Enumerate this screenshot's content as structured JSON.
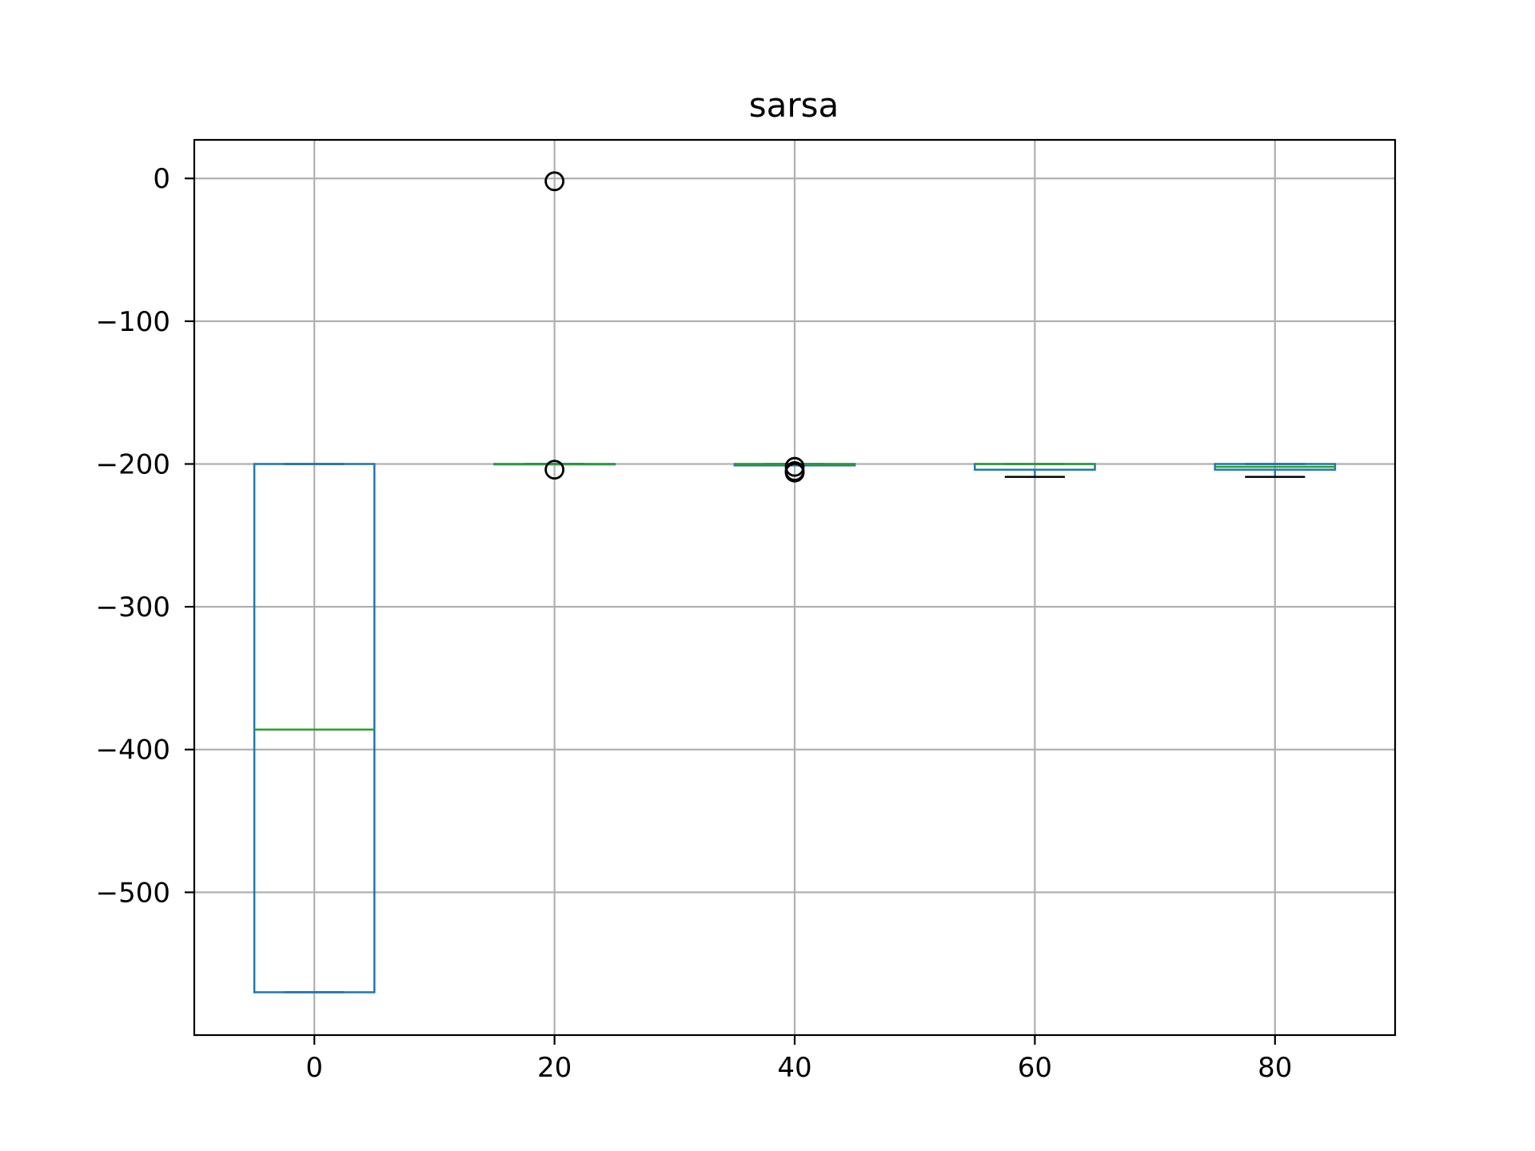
{
  "chart_data": {
    "type": "box",
    "title": "sarsa",
    "xlabel": "",
    "ylabel": "",
    "positions": [
      0,
      20,
      40,
      60,
      80
    ],
    "xlim": [
      -10,
      90
    ],
    "ylim": [
      -600,
      27
    ],
    "xticks": [
      "0",
      "20",
      "40",
      "60",
      "80"
    ],
    "yticks": [
      0,
      -100,
      -200,
      -300,
      -400,
      -500
    ],
    "yticklabels": [
      "0",
      "−100",
      "−200",
      "−300",
      "−400",
      "−500"
    ],
    "grid": true,
    "box_width": 10,
    "boxes": [
      {
        "position": 0,
        "whisker_low": -570,
        "q1": -570,
        "median": -386,
        "q3": -200,
        "whisker_high": -200,
        "fliers": []
      },
      {
        "position": 20,
        "whisker_low": -200,
        "q1": -200,
        "median": -200,
        "q3": -200,
        "whisker_high": -200,
        "fliers": [
          -2,
          -204
        ]
      },
      {
        "position": 40,
        "whisker_low": -201,
        "q1": -201,
        "median": -200,
        "q3": -200,
        "whisker_high": -200,
        "fliers": [
          -202,
          -205,
          -206
        ]
      },
      {
        "position": 60,
        "whisker_low": -209,
        "q1": -204,
        "median": -200,
        "q3": -200,
        "whisker_high": -200,
        "fliers": []
      },
      {
        "position": 80,
        "whisker_low": -209,
        "q1": -204,
        "median": -202,
        "q3": -200,
        "whisker_high": -200,
        "fliers": []
      }
    ],
    "colors": {
      "box": "#1f77b4",
      "median": "#2ca02c",
      "whisker": "#000000",
      "grid": "#b0b0b0"
    }
  }
}
